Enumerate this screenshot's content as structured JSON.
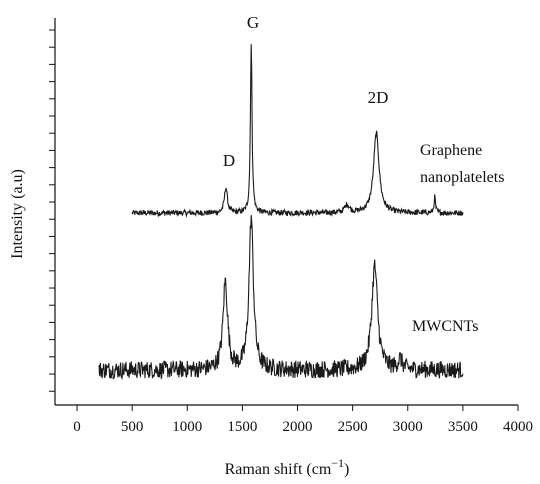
{
  "chart_data": {
    "type": "line",
    "xlabel_base": "Raman shift (cm",
    "xlabel_sup": "−1",
    "xlabel_close": ")",
    "ylabel": "Intensity (a.u)",
    "xlim": [
      -200,
      4000
    ],
    "xticks": [
      0,
      500,
      1000,
      1500,
      2000,
      2500,
      3000,
      3500,
      4000
    ],
    "xtick_labels": [
      "0",
      "500",
      "1000",
      "1500",
      "2000",
      "2500",
      "3000",
      "3500",
      "4000"
    ],
    "y_minor_tick_count": 22,
    "grid": false,
    "series": [
      {
        "name": "Graphene nanoplatelets",
        "label_lines": [
          "Graphene",
          "nanoplatelets"
        ],
        "x_range": [
          500,
          3500
        ],
        "baseline": 0,
        "noise": 0.35,
        "peaks": [
          {
            "x": 1350,
            "height": 3.2,
            "width": 16
          },
          {
            "x": 1580,
            "height": 21.0,
            "width": 9
          },
          {
            "x": 2450,
            "height": 1.0,
            "width": 25
          },
          {
            "x": 2715,
            "height": 10.0,
            "width": 30
          },
          {
            "x": 3245,
            "height": 2.0,
            "width": 8
          }
        ]
      },
      {
        "name": "MWCNTs",
        "label_lines": [
          "MWCNTs"
        ],
        "x_range": [
          200,
          3500
        ],
        "baseline": 0,
        "noise": 1.1,
        "peaks": [
          {
            "x": 1345,
            "height": 11.0,
            "width": 25
          },
          {
            "x": 1580,
            "height": 19.0,
            "width": 24
          },
          {
            "x": 2700,
            "height": 13.0,
            "width": 32
          },
          {
            "x": 2930,
            "height": 1.2,
            "width": 25
          }
        ]
      }
    ],
    "annotations": [
      {
        "text": "G"
      },
      {
        "text": "2D"
      },
      {
        "text": "D"
      }
    ]
  }
}
